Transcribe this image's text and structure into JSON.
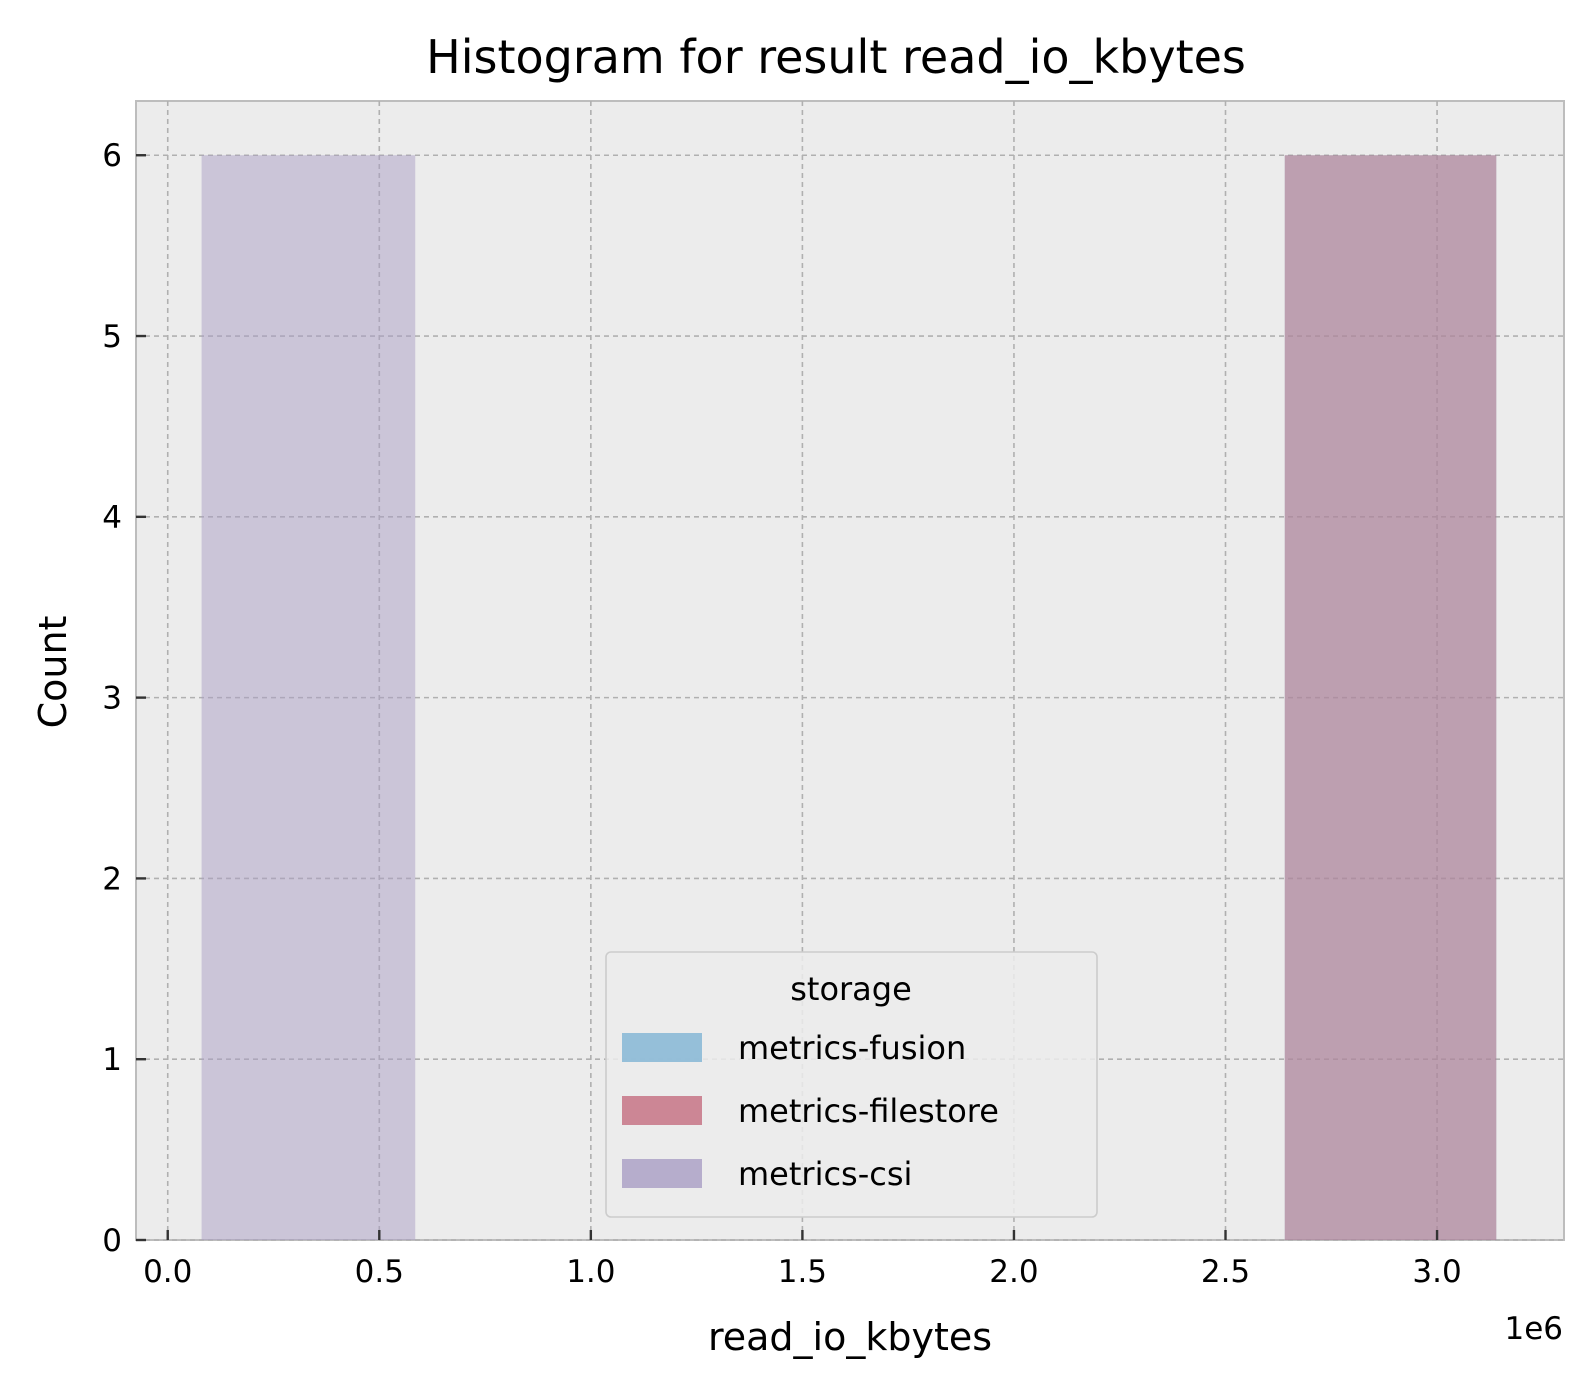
{
  "chart_data": {
    "type": "bar",
    "title": "Histogram for result read_io_kbytes",
    "xlabel": "read_io_kbytes",
    "ylabel": "Count",
    "x_offset_label": "1e6",
    "xlim": [
      -0.075,
      3.3
    ],
    "ylim": [
      0,
      6.3
    ],
    "x_ticks": [
      0.0,
      0.5,
      1.0,
      1.5,
      2.0,
      2.5,
      3.0
    ],
    "x_tick_labels": [
      "0.0",
      "0.5",
      "1.0",
      "1.5",
      "2.0",
      "2.5",
      "3.0"
    ],
    "y_ticks": [
      0,
      1,
      2,
      3,
      4,
      5,
      6
    ],
    "y_tick_labels": [
      "0",
      "1",
      "2",
      "3",
      "4",
      "5",
      "6"
    ],
    "grid": true,
    "legend": {
      "title": "storage",
      "placement": "lower-center",
      "entries": [
        "metrics-fusion",
        "metrics-filestore",
        "metrics-csi"
      ]
    },
    "series": [
      {
        "name": "metrics-fusion",
        "color": "#7fb4d4",
        "bins": [
          {
            "x_start": 2.64,
            "x_end": 3.14,
            "count": 6
          }
        ]
      },
      {
        "name": "metrics-filestore",
        "color": "#c46d80",
        "bins": [
          {
            "x_start": 2.64,
            "x_end": 3.14,
            "count": 6
          }
        ]
      },
      {
        "name": "metrics-csi",
        "color": "#a99ec4",
        "bins": [
          {
            "x_start": 0.08,
            "x_end": 0.585,
            "count": 6
          }
        ]
      }
    ]
  }
}
